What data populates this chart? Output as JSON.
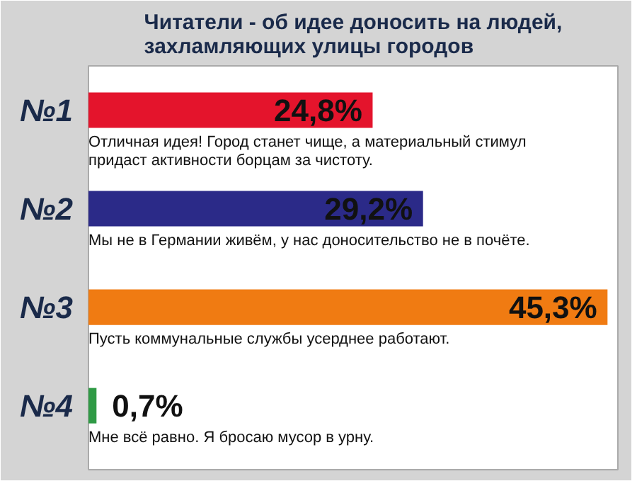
{
  "chart_data": {
    "type": "bar",
    "orientation": "horizontal",
    "title": "Читатели - об идее доносить на людей, захламляющих улицы городов",
    "categories": [
      "№1",
      "№2",
      "№3",
      "№4"
    ],
    "values": [
      24.8,
      29.2,
      45.3,
      0.7
    ],
    "colors": [
      "#e4142c",
      "#2b2a88",
      "#f07b12",
      "#2f9a45"
    ],
    "value_labels": [
      "24,8%",
      "29,2%",
      "45,3%",
      "0,7%"
    ],
    "annotations": [
      "Отличная идея! Город станет чище, а материальный стимул придаст активности борцам за чистоту.",
      "Мы не в Германии живём, у нас доносительство не в почёте.",
      "Пусть коммунальные службы усерднее работают.",
      "Мне всё равно. Я бросаю мусор в урну."
    ],
    "grid": false
  }
}
